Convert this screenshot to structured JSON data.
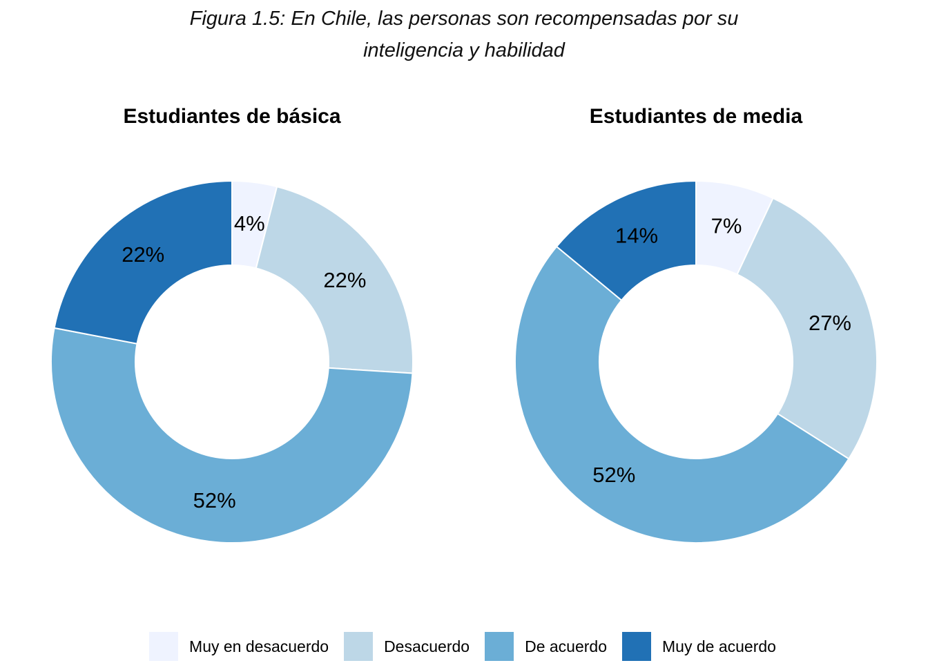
{
  "figure_title": {
    "line1": "Figura 1.5: En Chile, las personas son recompensadas por su",
    "line2": "inteligencia y habilidad"
  },
  "legend": {
    "position": "bottom",
    "items": [
      {
        "label": "Muy en desacuerdo",
        "color": "#EFF3FF"
      },
      {
        "label": "Desacuerdo",
        "color": "#BDD7E7"
      },
      {
        "label": "De acuerdo",
        "color": "#6BAED6"
      },
      {
        "label": "Muy de acuerdo",
        "color": "#2171B5"
      }
    ]
  },
  "chart_data": [
    {
      "type": "pie",
      "donut": true,
      "title": "Estudiantes de básica",
      "categories": [
        "Muy en desacuerdo",
        "Desacuerdo",
        "De acuerdo",
        "Muy de acuerdo"
      ],
      "values": [
        4,
        22,
        52,
        22
      ],
      "labels": [
        "4%",
        "22%",
        "52%",
        "22%"
      ],
      "colors": [
        "#EFF3FF",
        "#BDD7E7",
        "#6BAED6",
        "#2171B5"
      ]
    },
    {
      "type": "pie",
      "donut": true,
      "title": "Estudiantes de media",
      "categories": [
        "Muy en desacuerdo",
        "Desacuerdo",
        "De acuerdo",
        "Muy de acuerdo"
      ],
      "values": [
        7,
        27,
        52,
        14
      ],
      "labels": [
        "7%",
        "27%",
        "52%",
        "14%"
      ],
      "colors": [
        "#EFF3FF",
        "#BDD7E7",
        "#6BAED6",
        "#2171B5"
      ]
    }
  ]
}
